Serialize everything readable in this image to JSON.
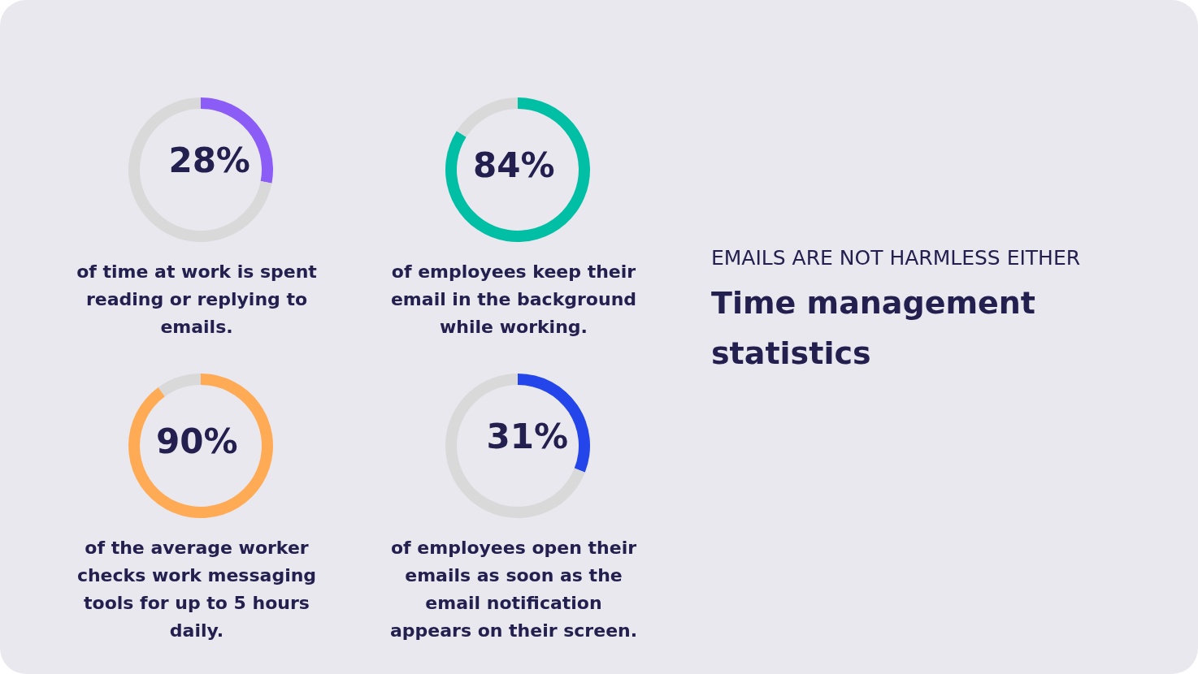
{
  "chart_data": [
    {
      "type": "donut",
      "categories": [
        null,
        null
      ],
      "values": [
        28,
        72
      ],
      "colors": [
        "#8c5cf7",
        "#d9d9d9"
      ],
      "value_labels": [
        "28%",
        null
      ],
      "annotations": [
        "of time at work is spent reading or replying to emails."
      ]
    },
    {
      "type": "donut",
      "categories": [
        null,
        null
      ],
      "values": [
        84,
        16
      ],
      "colors": [
        "#00bfa5",
        "#d9d9d9"
      ],
      "value_labels": [
        "84%",
        null
      ],
      "annotations": [
        "of employees keep their email in the background while working."
      ]
    },
    {
      "type": "donut",
      "categories": [
        null,
        null
      ],
      "values": [
        90,
        10
      ],
      "colors": [
        "#ffab55",
        "#d9d9d9"
      ],
      "value_labels": [
        "90%",
        null
      ],
      "annotations": [
        "of the average worker checks work messaging tools for up to 5 hours daily."
      ]
    },
    {
      "type": "donut",
      "categories": [
        null,
        null
      ],
      "values": [
        31,
        69
      ],
      "colors": [
        "#2445ea",
        "#d9d9d9"
      ],
      "value_labels": [
        "31%",
        null
      ],
      "annotations": [
        "of employees open their emails as soon as the email notification appears on their screen."
      ]
    },
    {
      "type": "other",
      "subtitle": "EMAILS ARE NOT HARMLESS EITHER",
      "title": "Time management statistics"
    }
  ]
}
